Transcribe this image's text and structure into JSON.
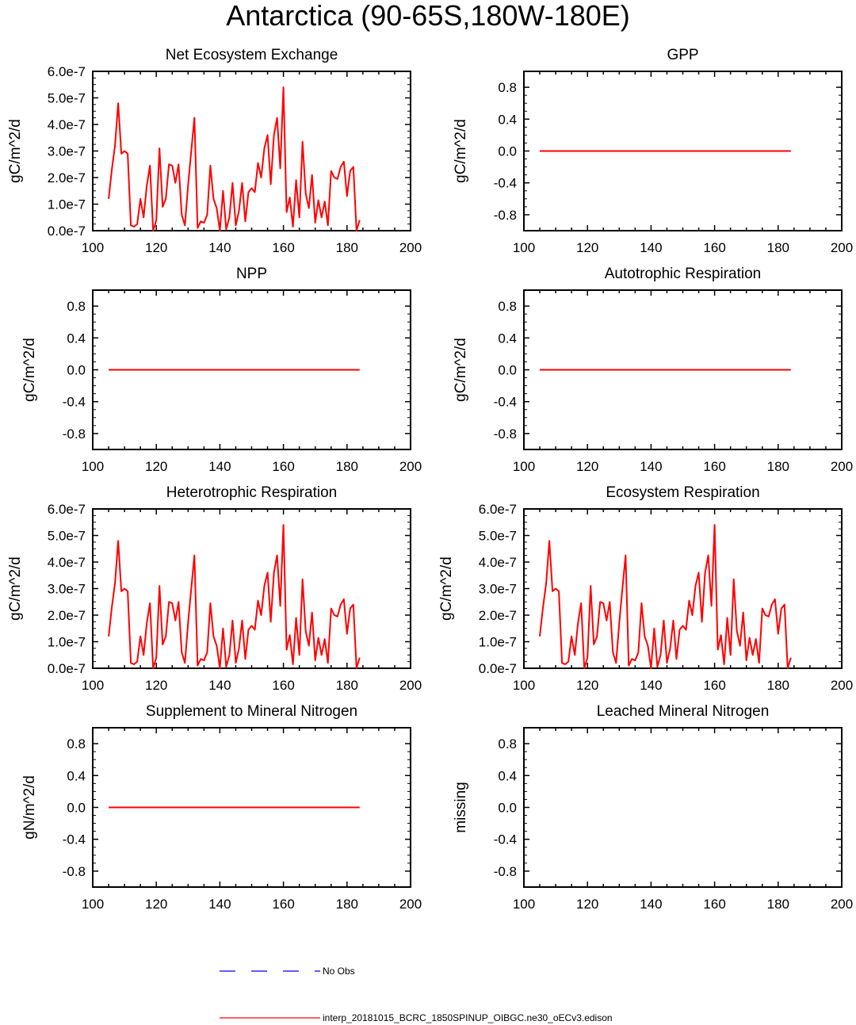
{
  "title": "Antarctica (90-65S,180W-180E)",
  "colors": {
    "series": "#ff0000",
    "obs": "#0000ff",
    "axis": "#000000"
  },
  "legend": [
    {
      "label": "No Obs",
      "color": "#0000ff",
      "style": "dashed"
    },
    {
      "label": "interp_20181015_BCRC_1850SPINUP_OIBGC.ne30_oECv3.edison",
      "color": "#ff0000",
      "style": "solid"
    }
  ],
  "chart_data": [
    {
      "type": "line",
      "title": "Net Ecosystem Exchange",
      "ylabel": "gC/m^2/d",
      "xlim": [
        100,
        200
      ],
      "ylim": [
        0,
        6e-07
      ],
      "xticks": [
        "100",
        "120",
        "140",
        "160",
        "180",
        "200"
      ],
      "yticks": [
        "0.0e-7",
        "1.0e-7",
        "2.0e-7",
        "3.0e-7",
        "4.0e-7",
        "5.0e-7",
        "6.0e-7"
      ],
      "series": [
        {
          "x_start": 105,
          "values": [
            1.2e-07,
            2.3e-07,
            3.2e-07,
            4.8e-07,
            2.9e-07,
            3e-07,
            2.9e-07,
            2e-08,
            1.5e-08,
            2.5e-08,
            1.2e-07,
            5e-08,
            1.7e-07,
            2.45e-07,
            0.0,
            4e-08,
            3.1e-07,
            9e-08,
            1.2e-07,
            2.5e-07,
            2.45e-07,
            1.8e-07,
            2.5e-07,
            6e-08,
            2e-08,
            1.7e-07,
            3e-07,
            4.25e-07,
            1e-08,
            3.5e-08,
            3e-08,
            6e-08,
            2.45e-07,
            1.2e-07,
            8.5e-08,
            0.0,
            1.5e-07,
            5e-09,
            5e-08,
            1.8e-07,
            2e-08,
            7.5e-08,
            1.8e-07,
            3.5e-08,
            1.45e-07,
            1.6e-07,
            1.45e-07,
            2.55e-07,
            2e-07,
            3.1e-07,
            3.6e-07,
            1.75e-07,
            3.6e-07,
            4.25e-07,
            2.35e-07,
            5.4e-07,
            7e-08,
            1.25e-07,
            1.5e-08,
            1.9e-07,
            5e-08,
            3.35e-07,
            1.4e-07,
            8.5e-08,
            2.1e-07,
            3e-08,
            1.15e-07,
            5e-08,
            1.1e-07,
            2e-08,
            2.25e-07,
            2e-07,
            1.95e-07,
            2.4e-07,
            2.6e-07,
            1.3e-07,
            2.25e-07,
            2.4e-07,
            0.0,
            4e-08
          ]
        }
      ]
    },
    {
      "type": "line",
      "title": "GPP",
      "ylabel": "gC/m^2/d",
      "xlim": [
        100,
        200
      ],
      "ylim": [
        -1,
        1
      ],
      "xticks": [
        "100",
        "120",
        "140",
        "160",
        "180",
        "200"
      ],
      "yticks": [
        "-0.8",
        "-0.4",
        "0.0",
        "0.4",
        "0.8"
      ],
      "series": [
        {
          "x": [
            105,
            184
          ],
          "values": [
            0,
            0
          ]
        }
      ]
    },
    {
      "type": "line",
      "title": "NPP",
      "ylabel": "gC/m^2/d",
      "xlim": [
        100,
        200
      ],
      "ylim": [
        -1,
        1
      ],
      "xticks": [
        "100",
        "120",
        "140",
        "160",
        "180",
        "200"
      ],
      "yticks": [
        "-0.8",
        "-0.4",
        "0.0",
        "0.4",
        "0.8"
      ],
      "series": [
        {
          "x": [
            105,
            184
          ],
          "values": [
            0,
            0
          ]
        }
      ]
    },
    {
      "type": "line",
      "title": "Autotrophic Respiration",
      "ylabel": "gC/m^2/d",
      "xlim": [
        100,
        200
      ],
      "ylim": [
        -1,
        1
      ],
      "xticks": [
        "100",
        "120",
        "140",
        "160",
        "180",
        "200"
      ],
      "yticks": [
        "-0.8",
        "-0.4",
        "0.0",
        "0.4",
        "0.8"
      ],
      "series": [
        {
          "x": [
            105,
            184
          ],
          "values": [
            0,
            0
          ]
        }
      ]
    },
    {
      "type": "line",
      "title": "Heterotrophic Respiration",
      "ylabel": "gC/m^2/d",
      "xlim": [
        100,
        200
      ],
      "ylim": [
        0,
        6e-07
      ],
      "xticks": [
        "100",
        "120",
        "140",
        "160",
        "180",
        "200"
      ],
      "yticks": [
        "0.0e-7",
        "1.0e-7",
        "2.0e-7",
        "3.0e-7",
        "4.0e-7",
        "5.0e-7",
        "6.0e-7"
      ],
      "series": [
        {
          "x_start": 105,
          "values": [
            1.2e-07,
            2.3e-07,
            3.2e-07,
            4.8e-07,
            2.9e-07,
            3e-07,
            2.9e-07,
            2e-08,
            1.5e-08,
            2.5e-08,
            1.2e-07,
            5e-08,
            1.7e-07,
            2.45e-07,
            0.0,
            4e-08,
            3.1e-07,
            9e-08,
            1.2e-07,
            2.5e-07,
            2.45e-07,
            1.8e-07,
            2.5e-07,
            6e-08,
            2e-08,
            1.7e-07,
            3e-07,
            4.25e-07,
            1e-08,
            3.5e-08,
            3e-08,
            6e-08,
            2.45e-07,
            1.2e-07,
            8.5e-08,
            0.0,
            1.5e-07,
            5e-09,
            5e-08,
            1.8e-07,
            2e-08,
            7.5e-08,
            1.8e-07,
            3.5e-08,
            1.45e-07,
            1.6e-07,
            1.45e-07,
            2.55e-07,
            2e-07,
            3.1e-07,
            3.6e-07,
            1.75e-07,
            3.6e-07,
            4.25e-07,
            2.35e-07,
            5.4e-07,
            7e-08,
            1.25e-07,
            1.5e-08,
            1.9e-07,
            5e-08,
            3.35e-07,
            1.4e-07,
            8.5e-08,
            2.1e-07,
            3e-08,
            1.15e-07,
            5e-08,
            1.1e-07,
            2e-08,
            2.25e-07,
            2e-07,
            1.95e-07,
            2.4e-07,
            2.6e-07,
            1.3e-07,
            2.25e-07,
            2.4e-07,
            0.0,
            4e-08
          ]
        }
      ]
    },
    {
      "type": "line",
      "title": "Ecosystem Respiration",
      "ylabel": "gC/m^2/d",
      "xlim": [
        100,
        200
      ],
      "ylim": [
        0,
        6e-07
      ],
      "xticks": [
        "100",
        "120",
        "140",
        "160",
        "180",
        "200"
      ],
      "yticks": [
        "0.0e-7",
        "1.0e-7",
        "2.0e-7",
        "3.0e-7",
        "4.0e-7",
        "5.0e-7",
        "6.0e-7"
      ],
      "series": [
        {
          "x_start": 105,
          "values": [
            1.2e-07,
            2.3e-07,
            3.2e-07,
            4.8e-07,
            2.9e-07,
            3e-07,
            2.9e-07,
            2e-08,
            1.5e-08,
            2.5e-08,
            1.2e-07,
            5e-08,
            1.7e-07,
            2.45e-07,
            0.0,
            4e-08,
            3.1e-07,
            9e-08,
            1.2e-07,
            2.5e-07,
            2.45e-07,
            1.8e-07,
            2.5e-07,
            6e-08,
            2e-08,
            1.7e-07,
            3e-07,
            4.25e-07,
            1e-08,
            3.5e-08,
            3e-08,
            6e-08,
            2.45e-07,
            1.2e-07,
            8.5e-08,
            0.0,
            1.5e-07,
            5e-09,
            5e-08,
            1.8e-07,
            2e-08,
            7.5e-08,
            1.8e-07,
            3.5e-08,
            1.45e-07,
            1.6e-07,
            1.45e-07,
            2.55e-07,
            2e-07,
            3.1e-07,
            3.6e-07,
            1.75e-07,
            3.6e-07,
            4.25e-07,
            2.35e-07,
            5.4e-07,
            7e-08,
            1.25e-07,
            1.5e-08,
            1.9e-07,
            5e-08,
            3.35e-07,
            1.4e-07,
            8.5e-08,
            2.1e-07,
            3e-08,
            1.15e-07,
            5e-08,
            1.1e-07,
            2e-08,
            2.25e-07,
            2e-07,
            1.95e-07,
            2.4e-07,
            2.6e-07,
            1.3e-07,
            2.25e-07,
            2.4e-07,
            0.0,
            4e-08
          ]
        }
      ]
    },
    {
      "type": "line",
      "title": "Supplement to Mineral Nitrogen",
      "ylabel": "gN/m^2/d",
      "xlim": [
        100,
        200
      ],
      "ylim": [
        -1,
        1
      ],
      "xticks": [
        "100",
        "120",
        "140",
        "160",
        "180",
        "200"
      ],
      "yticks": [
        "-0.8",
        "-0.4",
        "0.0",
        "0.4",
        "0.8"
      ],
      "series": [
        {
          "x": [
            105,
            184
          ],
          "values": [
            0,
            0
          ]
        }
      ]
    },
    {
      "type": "line",
      "title": "Leached Mineral Nitrogen",
      "ylabel": "missing",
      "xlim": [
        100,
        200
      ],
      "ylim": [
        -1,
        1
      ],
      "xticks": [
        "100",
        "120",
        "140",
        "160",
        "180",
        "200"
      ],
      "yticks": [
        "-0.8",
        "-0.4",
        "0.0",
        "0.4",
        "0.8"
      ],
      "series": []
    }
  ]
}
